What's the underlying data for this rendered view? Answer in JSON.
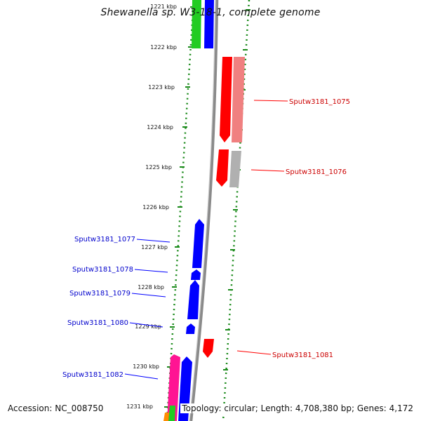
{
  "title": "Shewanella sp. W3-18-1, complete genome",
  "accession": "Accession: NC_008750",
  "summary": "Topology: circular; Length: 4,708,380 bp; Genes: 4,172",
  "colors": {
    "forward": "#0000ff",
    "reverse": "#ff0000",
    "reverse_light": "#f08080",
    "gray": "#b0b0b0",
    "green": "#22cc22",
    "pink": "#ff1493",
    "orange": "#ff8c00",
    "ruler": "#8a8a8a",
    "dotted": "#1a8a1a"
  },
  "ticks": [
    {
      "label": "1221 kbp"
    },
    {
      "label": "1222 kbp"
    },
    {
      "label": "1223 kbp"
    },
    {
      "label": "1224 kbp"
    },
    {
      "label": "1225 kbp"
    },
    {
      "label": "1226 kbp"
    },
    {
      "label": "1227 kbp"
    },
    {
      "label": "1228 kbp"
    },
    {
      "label": "1229 kbp"
    },
    {
      "label": "1230 kbp"
    },
    {
      "label": "1231 kbp"
    }
  ],
  "genes": [
    {
      "id": "g1",
      "label": "",
      "strand": "forward",
      "color": "#0000ff"
    },
    {
      "id": "g2",
      "label": "",
      "strand": "forward",
      "color": "#22cc22"
    },
    {
      "id": "g3",
      "label": "Sputw3181_1075",
      "strand": "reverse",
      "color": "#ff0000"
    },
    {
      "id": "g4",
      "label": "Sputw3181_1076",
      "strand": "reverse",
      "color": "#ff0000"
    },
    {
      "id": "g5",
      "label": "Sputw3181_1077",
      "strand": "forward",
      "color": "#0000ff"
    },
    {
      "id": "g6",
      "label": "Sputw3181_1078",
      "strand": "forward",
      "color": "#0000ff"
    },
    {
      "id": "g7",
      "label": "Sputw3181_1079",
      "strand": "forward",
      "color": "#0000ff"
    },
    {
      "id": "g8",
      "label": "Sputw3181_1080",
      "strand": "forward",
      "color": "#0000ff"
    },
    {
      "id": "g9",
      "label": "Sputw3181_1081",
      "strand": "reverse",
      "color": "#ff0000"
    },
    {
      "id": "g10",
      "label": "Sputw3181_1082",
      "strand": "forward",
      "color": "#ff1493"
    },
    {
      "id": "g11",
      "label": "",
      "strand": "forward",
      "color": "#0000ff"
    }
  ]
}
